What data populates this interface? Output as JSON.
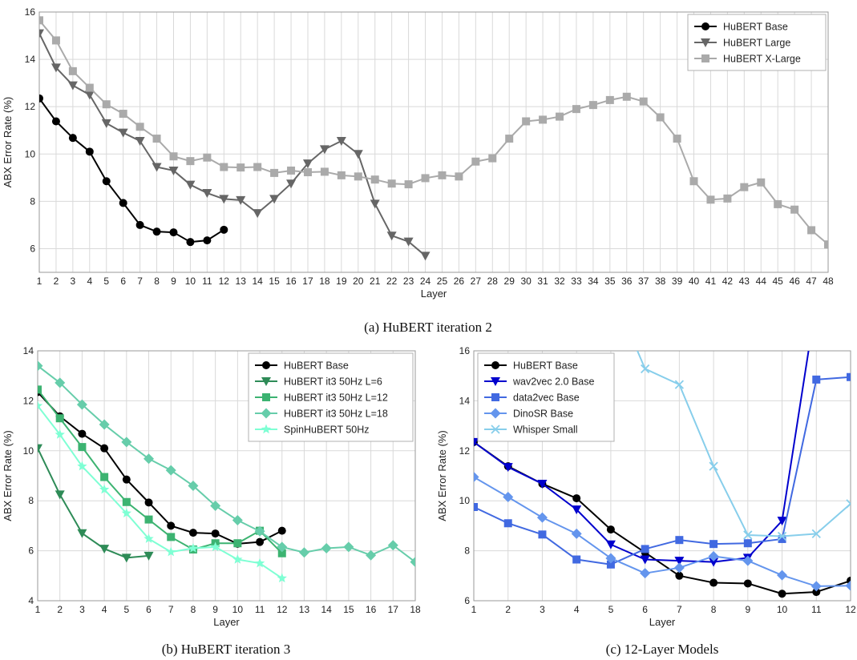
{
  "figure": {
    "captions": [
      "(a) HuBERT iteration 2",
      "(b) HuBERT iteration 3",
      "(c) 12-Layer Models"
    ]
  },
  "chart_data": [
    {
      "type": "line",
      "title": "(a) HuBERT iteration 2",
      "xlabel": "Layer",
      "ylabel": "ABX Error Rate (%)",
      "xlim": [
        1,
        48
      ],
      "ylim": [
        5,
        16
      ],
      "yticks": [
        6,
        8,
        10,
        12,
        14,
        16
      ],
      "grid": true,
      "legend": "top-right",
      "series": [
        {
          "name": "HuBERT Base",
          "color": "#000000",
          "marker": "circle",
          "x": [
            1,
            2,
            3,
            4,
            5,
            6,
            7,
            8,
            9,
            10,
            11,
            12
          ],
          "values": [
            12.35,
            11.38,
            10.68,
            10.1,
            8.85,
            7.93,
            7.0,
            6.72,
            6.69,
            6.28,
            6.35,
            6.8
          ]
        },
        {
          "name": "HuBERT Large",
          "color": "#666666",
          "marker": "triangle-down",
          "x": [
            1,
            2,
            3,
            4,
            5,
            6,
            7,
            8,
            9,
            10,
            11,
            12,
            13,
            14,
            15,
            16,
            17,
            18,
            19,
            20,
            21,
            22,
            23,
            24
          ],
          "values": [
            15.1,
            13.65,
            12.9,
            12.5,
            11.3,
            10.9,
            10.55,
            9.45,
            9.3,
            8.7,
            8.35,
            8.1,
            8.05,
            7.5,
            8.1,
            8.75,
            9.6,
            10.2,
            10.55,
            10.0,
            7.9,
            6.55,
            6.3,
            5.7
          ]
        },
        {
          "name": "HuBERT X-Large",
          "color": "#aaaaaa",
          "marker": "square",
          "x": [
            1,
            2,
            3,
            4,
            5,
            6,
            7,
            8,
            9,
            10,
            11,
            12,
            13,
            14,
            15,
            16,
            17,
            18,
            19,
            20,
            21,
            22,
            23,
            24,
            25,
            26,
            27,
            28,
            29,
            30,
            31,
            32,
            33,
            34,
            35,
            36,
            37,
            38,
            39,
            40,
            41,
            42,
            43,
            44,
            45,
            46,
            47,
            48
          ],
          "values": [
            15.65,
            14.8,
            13.5,
            12.8,
            12.1,
            11.7,
            11.15,
            10.65,
            9.9,
            9.7,
            9.85,
            9.45,
            9.43,
            9.45,
            9.2,
            9.3,
            9.23,
            9.25,
            9.1,
            9.05,
            8.92,
            8.75,
            8.72,
            8.98,
            9.1,
            9.05,
            9.68,
            9.82,
            10.65,
            11.38,
            11.45,
            11.58,
            11.9,
            12.07,
            12.28,
            12.42,
            12.22,
            11.55,
            10.65,
            8.85,
            8.07,
            8.12,
            8.6,
            8.8,
            7.88,
            7.65,
            6.78,
            6.18
          ]
        }
      ]
    },
    {
      "type": "line",
      "title": "(b) HuBERT iteration 3",
      "xlabel": "Layer",
      "ylabel": "ABX Error Rate (%)",
      "xlim": [
        1,
        18
      ],
      "ylim": [
        4,
        14
      ],
      "yticks": [
        4,
        6,
        8,
        10,
        12,
        14
      ],
      "grid": true,
      "legend": "top-right",
      "series": [
        {
          "name": "HuBERT Base",
          "color": "#000000",
          "marker": "circle",
          "x": [
            1,
            2,
            3,
            4,
            5,
            6,
            7,
            8,
            9,
            10,
            11,
            12
          ],
          "values": [
            12.35,
            11.38,
            10.68,
            10.1,
            8.85,
            7.93,
            7.0,
            6.72,
            6.69,
            6.28,
            6.35,
            6.8
          ]
        },
        {
          "name": "HuBERT it3 50Hz L=6",
          "color": "#2e8b57",
          "marker": "triangle-down",
          "x": [
            1,
            2,
            3,
            4,
            5,
            6
          ],
          "values": [
            10.1,
            8.25,
            6.7,
            6.08,
            5.72,
            5.8
          ]
        },
        {
          "name": "HuBERT it3 50Hz L=12",
          "color": "#3cb371",
          "marker": "square",
          "x": [
            1,
            2,
            3,
            4,
            5,
            6,
            7,
            8,
            9,
            10,
            11,
            12
          ],
          "values": [
            12.45,
            11.3,
            10.15,
            8.95,
            7.95,
            7.25,
            6.55,
            6.05,
            6.3,
            6.3,
            6.8,
            5.9
          ]
        },
        {
          "name": "HuBERT it3 50Hz L=18",
          "color": "#66cdaa",
          "marker": "diamond",
          "x": [
            1,
            2,
            3,
            4,
            5,
            6,
            7,
            8,
            9,
            10,
            11,
            12,
            13,
            14,
            15,
            16,
            17,
            18
          ],
          "values": [
            13.4,
            12.72,
            11.85,
            11.05,
            10.35,
            9.68,
            9.22,
            8.6,
            7.8,
            7.22,
            6.78,
            6.15,
            5.93,
            6.1,
            6.15,
            5.82,
            6.22,
            5.55
          ]
        },
        {
          "name": "SpinHuBERT 50Hz",
          "color": "#7fffd4",
          "marker": "star",
          "x": [
            1,
            2,
            3,
            4,
            5,
            6,
            7,
            8,
            9,
            10,
            11,
            12
          ],
          "values": [
            11.8,
            10.65,
            9.38,
            8.45,
            7.5,
            6.48,
            5.95,
            6.1,
            6.15,
            5.65,
            5.5,
            4.9
          ]
        }
      ]
    },
    {
      "type": "line",
      "title": "(c) 12-Layer Models",
      "xlabel": "Layer",
      "ylabel": "ABX Error Rate (%)",
      "xlim": [
        1,
        12
      ],
      "ylim": [
        6,
        16
      ],
      "yticks": [
        6,
        8,
        10,
        12,
        14,
        16
      ],
      "grid": true,
      "legend": "top-left",
      "series": [
        {
          "name": "HuBERT Base",
          "color": "#000000",
          "marker": "circle",
          "x": [
            1,
            2,
            3,
            4,
            5,
            6,
            7,
            8,
            9,
            10,
            11,
            12
          ],
          "values": [
            12.35,
            11.38,
            10.68,
            10.1,
            8.85,
            7.93,
            7.0,
            6.72,
            6.69,
            6.28,
            6.35,
            6.8
          ]
        },
        {
          "name": "wav2vec 2.0 Base",
          "color": "#0000cd",
          "marker": "triangle-down",
          "x": [
            1,
            2,
            3,
            4,
            5,
            6,
            7,
            8,
            9,
            10,
            11
          ],
          "values": [
            12.35,
            11.35,
            10.68,
            9.65,
            8.25,
            7.65,
            7.6,
            7.55,
            7.72,
            9.2,
            18.0
          ]
        },
        {
          "name": "data2vec Base",
          "color": "#4169e1",
          "marker": "square",
          "x": [
            1,
            2,
            3,
            4,
            5,
            6,
            7,
            8,
            9,
            10,
            11,
            12
          ],
          "values": [
            9.75,
            9.1,
            8.65,
            7.65,
            7.45,
            8.07,
            8.43,
            8.27,
            8.3,
            8.47,
            14.85,
            14.95
          ]
        },
        {
          "name": "DinoSR Base",
          "color": "#6495ed",
          "marker": "diamond",
          "x": [
            1,
            2,
            3,
            4,
            5,
            6,
            7,
            8,
            9,
            10,
            11,
            12
          ],
          "values": [
            10.95,
            10.15,
            9.33,
            8.68,
            7.7,
            7.1,
            7.32,
            7.78,
            7.6,
            7.02,
            6.58,
            6.6
          ]
        },
        {
          "name": "Whisper Small",
          "color": "#87ceeb",
          "marker": "x",
          "x": [
            5,
            6,
            7,
            8,
            9,
            10,
            11,
            12
          ],
          "values": [
            18.5,
            15.28,
            14.65,
            11.38,
            8.63,
            8.58,
            8.68,
            9.88
          ]
        }
      ]
    }
  ]
}
